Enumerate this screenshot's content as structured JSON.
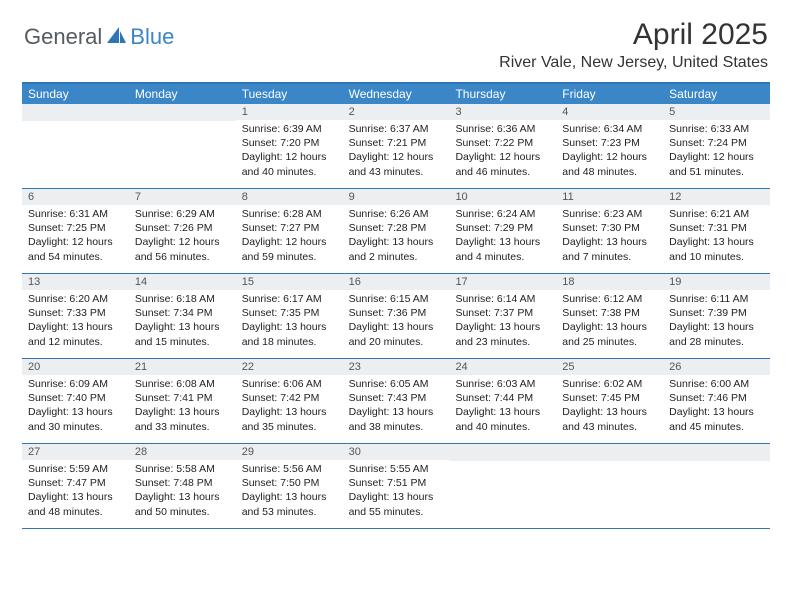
{
  "brand": {
    "part1": "General",
    "part2": "Blue"
  },
  "title": "April 2025",
  "location": "River Vale, New Jersey, United States",
  "colors": {
    "header_bg": "#3b86c6",
    "border": "#2f74b5",
    "daynum_bg": "#eceff1",
    "text": "#222222",
    "title_text": "#333333",
    "logo_gray": "#555b60",
    "logo_blue": "#3b86c6",
    "white": "#ffffff"
  },
  "day_headers": [
    "Sunday",
    "Monday",
    "Tuesday",
    "Wednesday",
    "Thursday",
    "Friday",
    "Saturday"
  ],
  "weeks": [
    [
      null,
      null,
      {
        "n": "1",
        "sr": "Sunrise: 6:39 AM",
        "ss": "Sunset: 7:20 PM",
        "dl": "Daylight: 12 hours and 40 minutes."
      },
      {
        "n": "2",
        "sr": "Sunrise: 6:37 AM",
        "ss": "Sunset: 7:21 PM",
        "dl": "Daylight: 12 hours and 43 minutes."
      },
      {
        "n": "3",
        "sr": "Sunrise: 6:36 AM",
        "ss": "Sunset: 7:22 PM",
        "dl": "Daylight: 12 hours and 46 minutes."
      },
      {
        "n": "4",
        "sr": "Sunrise: 6:34 AM",
        "ss": "Sunset: 7:23 PM",
        "dl": "Daylight: 12 hours and 48 minutes."
      },
      {
        "n": "5",
        "sr": "Sunrise: 6:33 AM",
        "ss": "Sunset: 7:24 PM",
        "dl": "Daylight: 12 hours and 51 minutes."
      }
    ],
    [
      {
        "n": "6",
        "sr": "Sunrise: 6:31 AM",
        "ss": "Sunset: 7:25 PM",
        "dl": "Daylight: 12 hours and 54 minutes."
      },
      {
        "n": "7",
        "sr": "Sunrise: 6:29 AM",
        "ss": "Sunset: 7:26 PM",
        "dl": "Daylight: 12 hours and 56 minutes."
      },
      {
        "n": "8",
        "sr": "Sunrise: 6:28 AM",
        "ss": "Sunset: 7:27 PM",
        "dl": "Daylight: 12 hours and 59 minutes."
      },
      {
        "n": "9",
        "sr": "Sunrise: 6:26 AM",
        "ss": "Sunset: 7:28 PM",
        "dl": "Daylight: 13 hours and 2 minutes."
      },
      {
        "n": "10",
        "sr": "Sunrise: 6:24 AM",
        "ss": "Sunset: 7:29 PM",
        "dl": "Daylight: 13 hours and 4 minutes."
      },
      {
        "n": "11",
        "sr": "Sunrise: 6:23 AM",
        "ss": "Sunset: 7:30 PM",
        "dl": "Daylight: 13 hours and 7 minutes."
      },
      {
        "n": "12",
        "sr": "Sunrise: 6:21 AM",
        "ss": "Sunset: 7:31 PM",
        "dl": "Daylight: 13 hours and 10 minutes."
      }
    ],
    [
      {
        "n": "13",
        "sr": "Sunrise: 6:20 AM",
        "ss": "Sunset: 7:33 PM",
        "dl": "Daylight: 13 hours and 12 minutes."
      },
      {
        "n": "14",
        "sr": "Sunrise: 6:18 AM",
        "ss": "Sunset: 7:34 PM",
        "dl": "Daylight: 13 hours and 15 minutes."
      },
      {
        "n": "15",
        "sr": "Sunrise: 6:17 AM",
        "ss": "Sunset: 7:35 PM",
        "dl": "Daylight: 13 hours and 18 minutes."
      },
      {
        "n": "16",
        "sr": "Sunrise: 6:15 AM",
        "ss": "Sunset: 7:36 PM",
        "dl": "Daylight: 13 hours and 20 minutes."
      },
      {
        "n": "17",
        "sr": "Sunrise: 6:14 AM",
        "ss": "Sunset: 7:37 PM",
        "dl": "Daylight: 13 hours and 23 minutes."
      },
      {
        "n": "18",
        "sr": "Sunrise: 6:12 AM",
        "ss": "Sunset: 7:38 PM",
        "dl": "Daylight: 13 hours and 25 minutes."
      },
      {
        "n": "19",
        "sr": "Sunrise: 6:11 AM",
        "ss": "Sunset: 7:39 PM",
        "dl": "Daylight: 13 hours and 28 minutes."
      }
    ],
    [
      {
        "n": "20",
        "sr": "Sunrise: 6:09 AM",
        "ss": "Sunset: 7:40 PM",
        "dl": "Daylight: 13 hours and 30 minutes."
      },
      {
        "n": "21",
        "sr": "Sunrise: 6:08 AM",
        "ss": "Sunset: 7:41 PM",
        "dl": "Daylight: 13 hours and 33 minutes."
      },
      {
        "n": "22",
        "sr": "Sunrise: 6:06 AM",
        "ss": "Sunset: 7:42 PM",
        "dl": "Daylight: 13 hours and 35 minutes."
      },
      {
        "n": "23",
        "sr": "Sunrise: 6:05 AM",
        "ss": "Sunset: 7:43 PM",
        "dl": "Daylight: 13 hours and 38 minutes."
      },
      {
        "n": "24",
        "sr": "Sunrise: 6:03 AM",
        "ss": "Sunset: 7:44 PM",
        "dl": "Daylight: 13 hours and 40 minutes."
      },
      {
        "n": "25",
        "sr": "Sunrise: 6:02 AM",
        "ss": "Sunset: 7:45 PM",
        "dl": "Daylight: 13 hours and 43 minutes."
      },
      {
        "n": "26",
        "sr": "Sunrise: 6:00 AM",
        "ss": "Sunset: 7:46 PM",
        "dl": "Daylight: 13 hours and 45 minutes."
      }
    ],
    [
      {
        "n": "27",
        "sr": "Sunrise: 5:59 AM",
        "ss": "Sunset: 7:47 PM",
        "dl": "Daylight: 13 hours and 48 minutes."
      },
      {
        "n": "28",
        "sr": "Sunrise: 5:58 AM",
        "ss": "Sunset: 7:48 PM",
        "dl": "Daylight: 13 hours and 50 minutes."
      },
      {
        "n": "29",
        "sr": "Sunrise: 5:56 AM",
        "ss": "Sunset: 7:50 PM",
        "dl": "Daylight: 13 hours and 53 minutes."
      },
      {
        "n": "30",
        "sr": "Sunrise: 5:55 AM",
        "ss": "Sunset: 7:51 PM",
        "dl": "Daylight: 13 hours and 55 minutes."
      },
      null,
      null,
      null
    ]
  ]
}
